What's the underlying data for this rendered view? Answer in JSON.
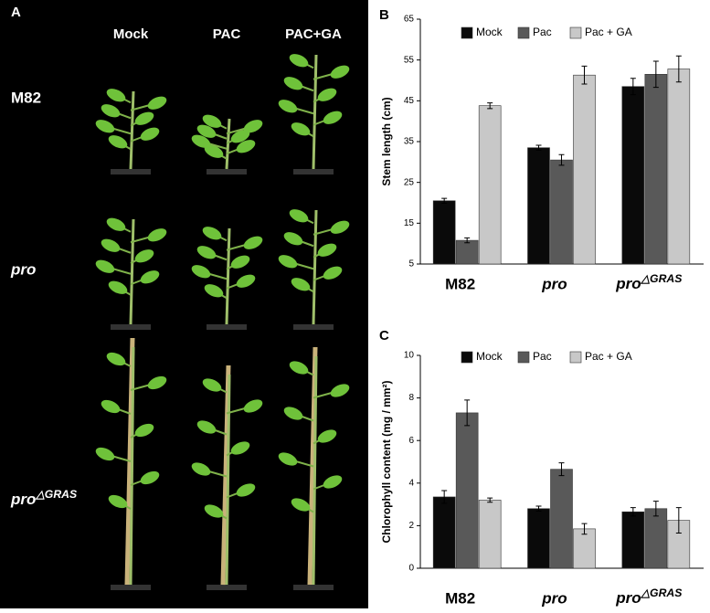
{
  "panel_a": {
    "label": "A",
    "columns": [
      "Mock",
      "PAC",
      "PAC+GA"
    ],
    "rows": [
      "M82",
      "pro",
      "pro△GRAS"
    ]
  },
  "chart_data": [
    {
      "type": "bar",
      "panel": "B",
      "y_label": "Stem length (cm)",
      "categories": [
        "M82",
        "pro",
        "pro△GRAS"
      ],
      "series": [
        {
          "name": "Mock",
          "color": "#0a0a0a",
          "values": [
            20.5,
            33.5,
            48.5
          ],
          "errors": [
            0.6,
            0.6,
            2
          ]
        },
        {
          "name": "Pac",
          "color": "#595959",
          "values": [
            10.8,
            30.5,
            51.5
          ],
          "errors": [
            0.6,
            1.3,
            3.2
          ]
        },
        {
          "name": "Pac + GA",
          "color": "#c8c8c8",
          "values": [
            43.8,
            51.3,
            52.8
          ],
          "errors": [
            0.7,
            2.2,
            3.2
          ]
        }
      ],
      "ylim": [
        5,
        65
      ],
      "yticks": [
        5,
        15,
        25,
        35,
        45,
        55,
        65
      ],
      "legend": "top"
    },
    {
      "type": "bar",
      "panel": "C",
      "y_label": "Chlorophyll content (mg / mm²)",
      "categories": [
        "M82",
        "pro",
        "pro△GRAS"
      ],
      "series": [
        {
          "name": "Mock",
          "color": "#0a0a0a",
          "values": [
            3.35,
            2.8,
            2.65
          ],
          "errors": [
            0.3,
            0.12,
            0.2
          ]
        },
        {
          "name": "Pac",
          "color": "#595959",
          "values": [
            7.3,
            4.65,
            2.8
          ],
          "errors": [
            0.6,
            0.3,
            0.35
          ]
        },
        {
          "name": "Pac + GA",
          "color": "#c8c8c8",
          "values": [
            3.2,
            1.85,
            2.25
          ],
          "errors": [
            0.1,
            0.25,
            0.6
          ]
        }
      ],
      "ylim": [
        0,
        10
      ],
      "yticks": [
        0,
        2,
        4,
        6,
        8,
        10
      ],
      "legend": "top"
    }
  ]
}
